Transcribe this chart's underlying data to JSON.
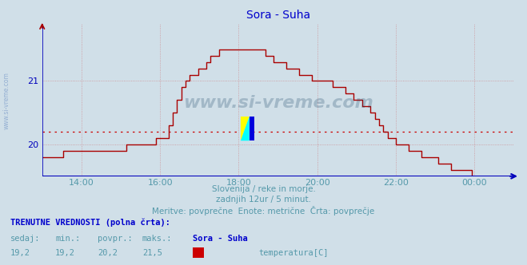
{
  "title": "Sora - Suha",
  "bg_color": "#d0dfe8",
  "plot_bg_color": "#d0dfe8",
  "line_color": "#aa0000",
  "line_width": 1.0,
  "avg_line_value": 20.2,
  "avg_line_color": "#cc0000",
  "axis_color": "#0000bb",
  "title_color": "#0000cc",
  "title_fontsize": 10,
  "ylabel_ticks": [
    20,
    21
  ],
  "ylim": [
    19.5,
    21.9
  ],
  "grid_color": "#cc4444",
  "grid_alpha": 0.5,
  "xaxis_label_color": "#5599aa",
  "watermark_text": "www.si-vreme.com",
  "watermark_color": "#1a4466",
  "watermark_alpha": 0.25,
  "subtitle1": "Slovenija / reke in morje.",
  "subtitle2": "zadnjih 12ur / 5 minut.",
  "subtitle3": "Meritve: povprečne  Enote: metrične  Črta: povprečje",
  "subtitle_color": "#5599aa",
  "footer_label1": "TRENUTNE VREDNOSTI (polna črta):",
  "footer_col_headers": [
    "sedaj:",
    "min.:",
    "povpr.:",
    "maks.:",
    "Sora - Suha"
  ],
  "footer_values": [
    "19,2",
    "19,2",
    "20,2",
    "21,5"
  ],
  "footer_legend_color": "#cc0000",
  "footer_legend_label": "temperatura[C]",
  "footer_color": "#5599aa",
  "footer_header_color": "#0000cc",
  "x_tick_labels": [
    "14:00",
    "16:00",
    "18:00",
    "20:00",
    "22:00",
    "00:00"
  ],
  "temperature_data": [
    19.8,
    19.8,
    19.8,
    19.8,
    19.8,
    19.9,
    19.9,
    19.9,
    19.9,
    19.9,
    19.9,
    19.9,
    19.9,
    19.9,
    19.9,
    19.9,
    19.9,
    19.9,
    19.9,
    19.9,
    20.0,
    20.0,
    20.0,
    20.0,
    20.0,
    20.0,
    20.0,
    20.1,
    20.1,
    20.1,
    20.3,
    20.5,
    20.7,
    20.9,
    21.0,
    21.1,
    21.1,
    21.2,
    21.2,
    21.3,
    21.4,
    21.4,
    21.5,
    21.5,
    21.5,
    21.5,
    21.5,
    21.5,
    21.5,
    21.5,
    21.5,
    21.5,
    21.5,
    21.4,
    21.4,
    21.3,
    21.3,
    21.3,
    21.2,
    21.2,
    21.2,
    21.1,
    21.1,
    21.1,
    21.0,
    21.0,
    21.0,
    21.0,
    21.0,
    20.9,
    20.9,
    20.9,
    20.8,
    20.8,
    20.7,
    20.7,
    20.6,
    20.6,
    20.5,
    20.4,
    20.3,
    20.2,
    20.1,
    20.1,
    20.0,
    20.0,
    20.0,
    19.9,
    19.9,
    19.9,
    19.8,
    19.8,
    19.8,
    19.8,
    19.7,
    19.7,
    19.7,
    19.6,
    19.6,
    19.6,
    19.6,
    19.6,
    19.5,
    19.5,
    19.5,
    19.5,
    19.5,
    19.4,
    19.4,
    19.3,
    19.3,
    19.2
  ]
}
